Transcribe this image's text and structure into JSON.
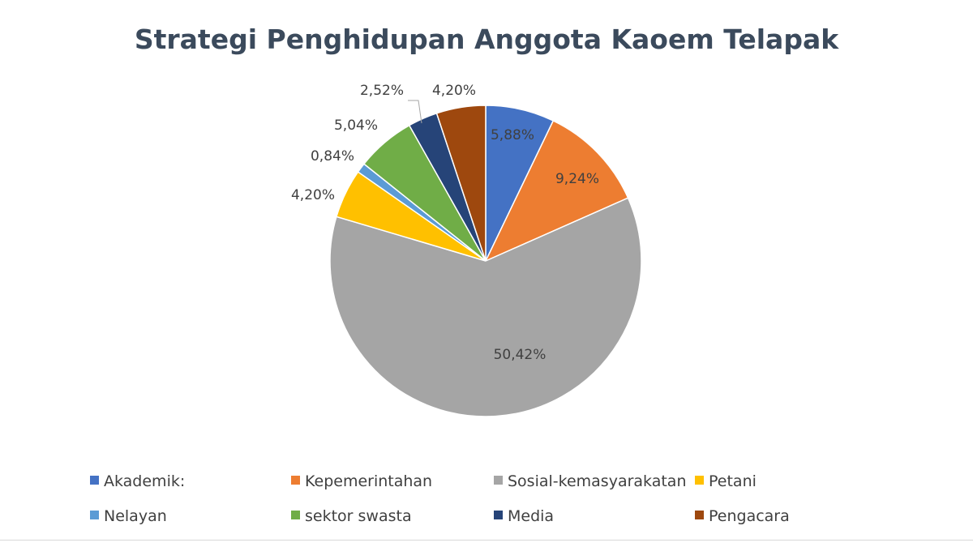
{
  "chart_data": {
    "type": "pie",
    "title": "Strategi Penghidupan Anggota Kaoem Telapak",
    "slices": [
      {
        "label": "Akademik:",
        "value": 5.88,
        "value_label": "5,88%",
        "color": "#4472c4"
      },
      {
        "label": "Kepemerintahan",
        "value": 9.24,
        "value_label": "9,24%",
        "color": "#ed7d31"
      },
      {
        "label": "Sosial-kemasyarakatan",
        "value": 50.42,
        "value_label": "50,42%",
        "color": "#a5a5a5"
      },
      {
        "label": "Petani",
        "value": 4.2,
        "value_label": "4,20%",
        "color": "#ffc000"
      },
      {
        "label": "Nelayan",
        "value": 0.84,
        "value_label": "0,84%",
        "color": "#5b9bd5"
      },
      {
        "label": "sektor swasta",
        "value": 5.04,
        "value_label": "5,04%",
        "color": "#70ad47"
      },
      {
        "label": "Media",
        "value": 2.52,
        "value_label": "2,52%",
        "color": "#264478"
      },
      {
        "label": "Pengacara",
        "value": 4.2,
        "value_label": "4,20%",
        "color": "#9e480e"
      }
    ],
    "legend_position": "bottom"
  }
}
